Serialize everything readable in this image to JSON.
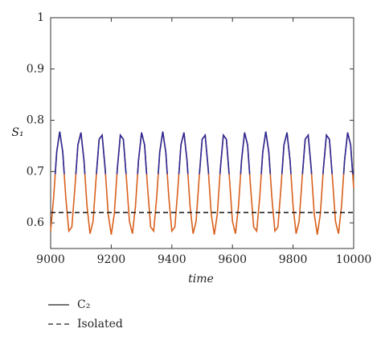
{
  "chart_data": {
    "type": "line",
    "xlabel": "time",
    "ylabel": "S₁",
    "xlim": [
      9000,
      10000
    ],
    "xticks": [
      9000,
      9200,
      9400,
      9600,
      9800,
      10000
    ],
    "ylim": [
      0.55,
      1
    ],
    "yticks": [
      0.6,
      0.7,
      0.8,
      0.9,
      1
    ],
    "grid": false,
    "legend": "below",
    "highlight": {
      "above": 0.695,
      "color": "#2a2a9a"
    },
    "series": [
      {
        "name": "C₂",
        "color": "#d9601c",
        "dash": false,
        "x": [
          9000,
          9010,
          9020,
          9030,
          9040,
          9050,
          9060,
          9070,
          9080,
          9090,
          9100,
          9110,
          9120,
          9130,
          9140,
          9150,
          9160,
          9170,
          9180,
          9190,
          9200,
          9210,
          9220,
          9230,
          9240,
          9250,
          9260,
          9270,
          9280,
          9290,
          9300,
          9310,
          9320,
          9330,
          9340,
          9350,
          9360,
          9370,
          9380,
          9390,
          9400,
          9410,
          9420,
          9430,
          9440,
          9450,
          9460,
          9470,
          9480,
          9490,
          9500,
          9510,
          9520,
          9530,
          9540,
          9550,
          9560,
          9570,
          9580,
          9590,
          9600,
          9610,
          9620,
          9630,
          9640,
          9650,
          9660,
          9670,
          9680,
          9690,
          9700,
          9710,
          9720,
          9730,
          9740,
          9750,
          9760,
          9770,
          9780,
          9790,
          9800,
          9810,
          9820,
          9830,
          9840,
          9850,
          9860,
          9870,
          9880,
          9890,
          9900,
          9910,
          9920,
          9930,
          9940,
          9950,
          9960,
          9970,
          9980,
          9990,
          10000
        ],
        "values": [
          0.584,
          0.65,
          0.738,
          0.778,
          0.738,
          0.65,
          0.584,
          0.592,
          0.668,
          0.752,
          0.776,
          0.722,
          0.633,
          0.579,
          0.603,
          0.687,
          0.763,
          0.771,
          0.705,
          0.617,
          0.577,
          0.617,
          0.705,
          0.771,
          0.763,
          0.687,
          0.603,
          0.579,
          0.633,
          0.722,
          0.776,
          0.752,
          0.668,
          0.592,
          0.584,
          0.65,
          0.738,
          0.778,
          0.738,
          0.65,
          0.584,
          0.592,
          0.668,
          0.752,
          0.776,
          0.722,
          0.633,
          0.579,
          0.603,
          0.687,
          0.763,
          0.771,
          0.705,
          0.617,
          0.577,
          0.617,
          0.705,
          0.771,
          0.763,
          0.687,
          0.603,
          0.579,
          0.633,
          0.722,
          0.776,
          0.752,
          0.668,
          0.592,
          0.584,
          0.65,
          0.738,
          0.778,
          0.738,
          0.65,
          0.584,
          0.592,
          0.668,
          0.752,
          0.776,
          0.722,
          0.633,
          0.579,
          0.603,
          0.687,
          0.763,
          0.771,
          0.705,
          0.617,
          0.577,
          0.617,
          0.705,
          0.771,
          0.763,
          0.687,
          0.603,
          0.579,
          0.633,
          0.722,
          0.776,
          0.752,
          0.668
        ]
      },
      {
        "name": "Isolated",
        "color": "#222222",
        "dash": true,
        "x": [
          9000,
          10000
        ],
        "values": [
          0.62,
          0.62
        ]
      }
    ]
  }
}
